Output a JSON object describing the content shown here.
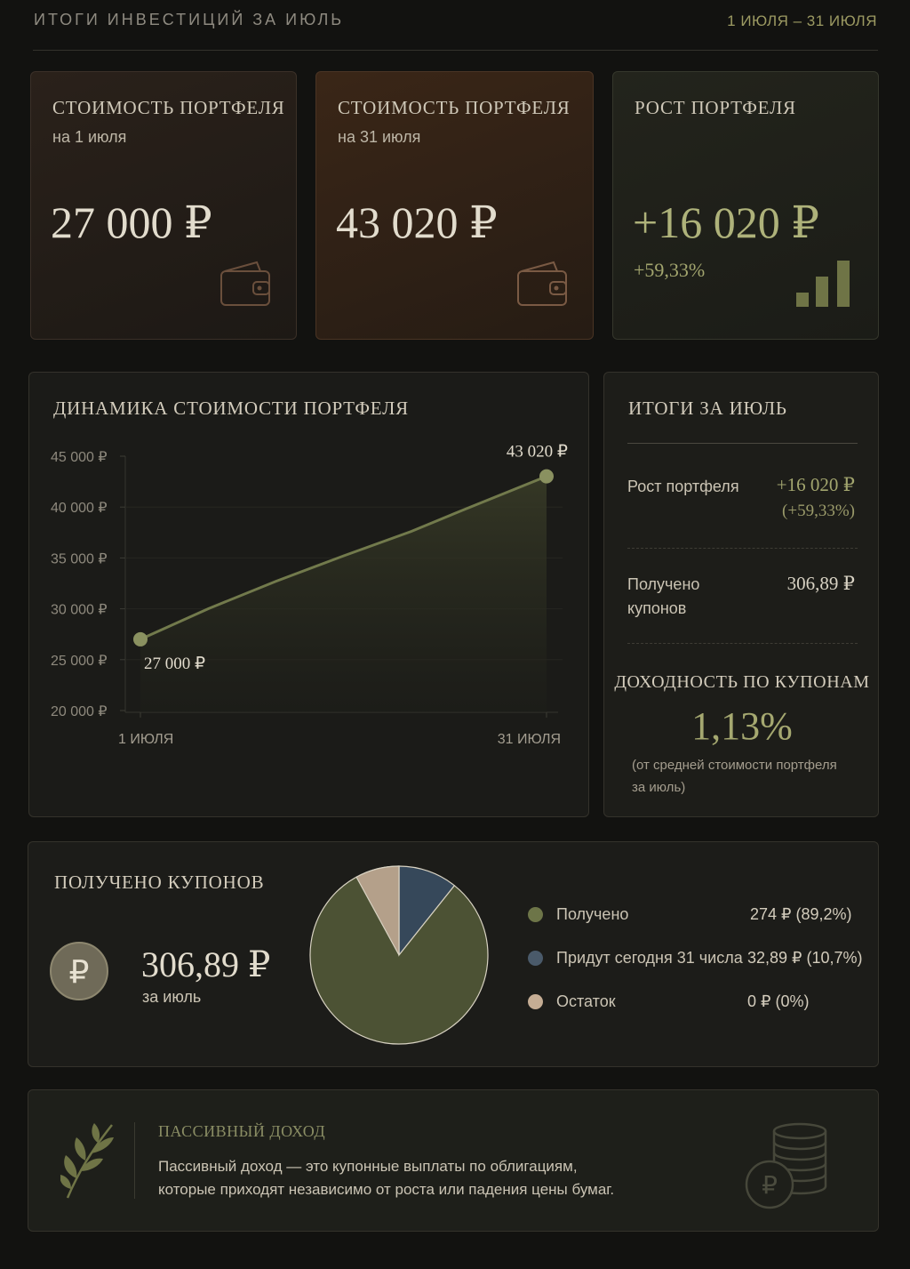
{
  "header": {
    "title": "ИТОГИ ИНВЕСТИЦИЙ ЗА ИЮЛЬ",
    "range": "1 ИЮЛЯ – 31 ИЮЛЯ"
  },
  "cards": {
    "start": {
      "label": "СТОИМОСТЬ ПОРТФЕЛЯ",
      "sub": "на 1 июля",
      "value": "27 000 ₽",
      "icon": "wallet-icon"
    },
    "end": {
      "label": "СТОИМОСТЬ ПОРТФЕЛЯ",
      "sub": "на 31 июля",
      "value": "43 020 ₽",
      "icon": "wallet-icon"
    },
    "growth": {
      "label": "РОСТ ПОРТФЕЛЯ",
      "value": "+16 020 ₽",
      "pct": "+59,33%",
      "icon": "bar-chart-icon"
    }
  },
  "chart": {
    "title": "ДИНАМИКА СТОИМОСТИ ПОРТФЕЛЯ",
    "start_label": "27 000 ₽",
    "end_label": "43 020 ₽"
  },
  "chart_data": {
    "type": "area",
    "title": "ДИНАМИКА СТОИМОСТИ ПОРТФЕЛЯ",
    "x": [
      1,
      6,
      11,
      16,
      21,
      25,
      31
    ],
    "x_tick_labels": [
      "1 ИЮЛЯ",
      "31 ИЮЛЯ"
    ],
    "y": [
      27000,
      30000,
      32700,
      35200,
      37600,
      39800,
      43020
    ],
    "ylim": [
      20000,
      45000
    ],
    "y_ticks": [
      45000,
      40000,
      35000,
      30000,
      25000,
      20000
    ],
    "y_tick_labels": [
      "45 000 ₽",
      "40 000 ₽",
      "35 000 ₽",
      "30 000 ₽",
      "25 000 ₽",
      "20 000 ₽"
    ],
    "grid": true,
    "color": "#8a9160"
  },
  "summary": {
    "title": "ИТОГИ ЗА ИЮЛЬ",
    "growth_label": "Рост портфеля",
    "growth_value": "+16 020 ₽",
    "growth_pct": "(+59,33%)",
    "coupons_label_1": "Получено",
    "coupons_label_2": "купонов",
    "coupons_value": "306,89 ₽",
    "yield_title": "ДОХОДНОСТЬ ПО КУПОНАМ",
    "yield_value": "1,13%",
    "yield_note_1": "(от средней стоимости портфеля",
    "yield_note_2": "за июль)"
  },
  "coupons": {
    "title": "ПОЛУЧЕНО КУПОНОВ",
    "icon": "ruble-coin-icon",
    "value": "306,89 ₽",
    "sub": "за июль",
    "pie": {
      "type": "pie",
      "slices": [
        {
          "label": "Получено",
          "value": 274,
          "pct": 89.2,
          "color": "#4c5234"
        },
        {
          "label": "Придут сегодня 31 числа",
          "value": 32.89,
          "pct": 10.7,
          "color": "#36485a"
        },
        {
          "label": "Остаток",
          "value": 0,
          "pct": 0,
          "color": "#b4a08a"
        }
      ]
    },
    "legend": [
      {
        "label": "Получено",
        "value": "274 ₽ (89,2%)",
        "color": "#6d7548"
      },
      {
        "label": "Придут сегодня 31 числа",
        "value": "32,89 ₽ (10,7%)",
        "color": "#4a5a6a"
      },
      {
        "label": "Остаток",
        "value": "0 ₽  (0%)",
        "color": "#c5ad94"
      }
    ]
  },
  "passive": {
    "icon": "olive-branch-icon",
    "title": "ПАССИВНЫЙ ДОХОД",
    "line1": "Пассивный доход — это купонные выплаты по облигациям,",
    "line2": "которые приходят независимо от роста или падения цены бумаг.",
    "coins_icon": "coin-stack-icon"
  }
}
